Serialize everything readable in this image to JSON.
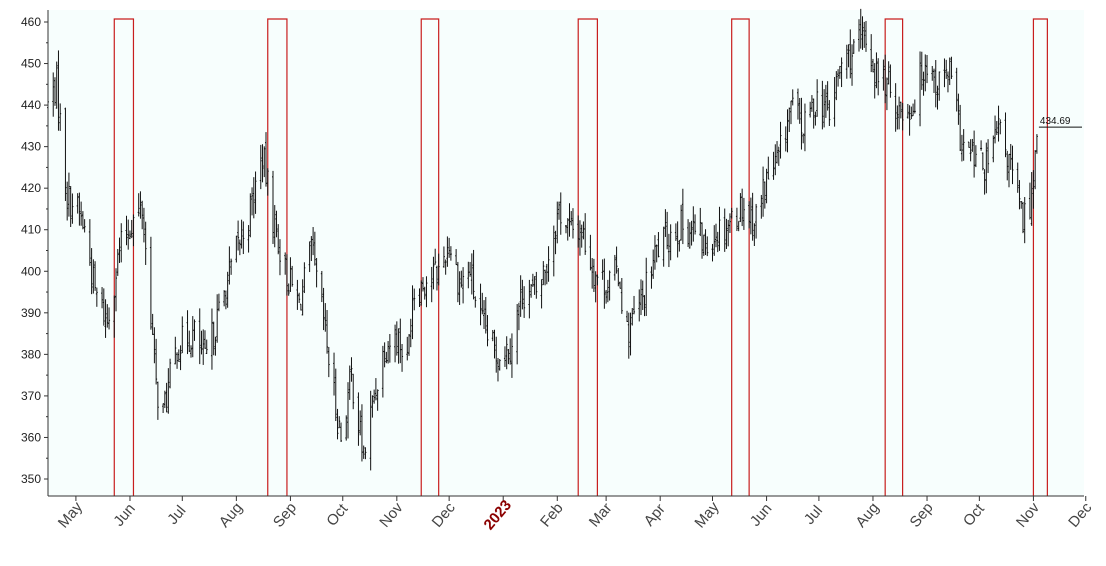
{
  "chart_data": {
    "type": "ohlc",
    "title": "",
    "xlabel": "",
    "ylabel": "",
    "ylim": [
      345,
      461
    ],
    "y_ticks": [
      350,
      360,
      370,
      380,
      390,
      400,
      410,
      420,
      430,
      440,
      450,
      460
    ],
    "x_range": [
      "2022-04-15",
      "2023-11-30"
    ],
    "x_ticks": [
      {
        "label": "May",
        "date": "2022-05-01",
        "year": false
      },
      {
        "label": "Jun",
        "date": "2022-06-01",
        "year": false
      },
      {
        "label": "Jul",
        "date": "2022-07-01",
        "year": false
      },
      {
        "label": "Aug",
        "date": "2022-08-01",
        "year": false
      },
      {
        "label": "Sep",
        "date": "2022-09-01",
        "year": false
      },
      {
        "label": "Oct",
        "date": "2022-10-01",
        "year": false
      },
      {
        "label": "Nov",
        "date": "2022-11-01",
        "year": false
      },
      {
        "label": "Dec",
        "date": "2022-12-01",
        "year": false
      },
      {
        "label": "2023",
        "date": "2023-01-01",
        "year": true
      },
      {
        "label": "Feb",
        "date": "2023-02-01",
        "year": false
      },
      {
        "label": "Mar",
        "date": "2023-03-01",
        "year": false
      },
      {
        "label": "Apr",
        "date": "2023-04-01",
        "year": false
      },
      {
        "label": "May",
        "date": "2023-05-01",
        "year": false
      },
      {
        "label": "Jun",
        "date": "2023-06-01",
        "year": false
      },
      {
        "label": "Jul",
        "date": "2023-07-01",
        "year": false
      },
      {
        "label": "Aug",
        "date": "2023-08-01",
        "year": false
      },
      {
        "label": "Sep",
        "date": "2023-09-01",
        "year": false
      },
      {
        "label": "Oct",
        "date": "2023-10-01",
        "year": false
      },
      {
        "label": "Nov",
        "date": "2023-11-01",
        "year": false
      },
      {
        "label": "Dec",
        "date": "2023-12-01",
        "year": false
      }
    ],
    "price_path": [
      [
        "2022-04-15",
        440
      ],
      [
        "2022-04-20",
        445
      ],
      [
        "2022-04-26",
        418
      ],
      [
        "2022-05-02",
        415
      ],
      [
        "2022-05-06",
        410
      ],
      [
        "2022-05-12",
        395
      ],
      [
        "2022-05-19",
        388
      ],
      [
        "2022-05-26",
        405
      ],
      [
        "2022-06-02",
        412
      ],
      [
        "2022-06-08",
        415
      ],
      [
        "2022-06-13",
        390
      ],
      [
        "2022-06-16",
        372
      ],
      [
        "2022-06-20",
        366
      ],
      [
        "2022-06-28",
        382
      ],
      [
        "2022-07-08",
        385
      ],
      [
        "2022-07-14",
        378
      ],
      [
        "2022-07-22",
        390
      ],
      [
        "2022-08-01",
        405
      ],
      [
        "2022-08-08",
        413
      ],
      [
        "2022-08-16",
        428
      ],
      [
        "2022-08-22",
        413
      ],
      [
        "2022-08-29",
        400
      ],
      [
        "2022-09-06",
        392
      ],
      [
        "2022-09-13",
        405
      ],
      [
        "2022-09-20",
        388
      ],
      [
        "2022-09-26",
        370
      ],
      [
        "2022-09-30",
        360
      ],
      [
        "2022-10-06",
        375
      ],
      [
        "2022-10-13",
        355
      ],
      [
        "2022-10-18",
        368
      ],
      [
        "2022-10-25",
        382
      ],
      [
        "2022-11-01",
        385
      ],
      [
        "2022-11-07",
        378
      ],
      [
        "2022-11-10",
        395
      ],
      [
        "2022-11-18",
        398
      ],
      [
        "2022-11-25",
        400
      ],
      [
        "2022-12-01",
        407
      ],
      [
        "2022-12-07",
        397
      ],
      [
        "2022-12-13",
        400
      ],
      [
        "2022-12-19",
        388
      ],
      [
        "2022-12-28",
        380
      ],
      [
        "2023-01-05",
        382
      ],
      [
        "2023-01-12",
        395
      ],
      [
        "2023-01-20",
        395
      ],
      [
        "2023-01-26",
        402
      ],
      [
        "2023-02-02",
        415
      ],
      [
        "2023-02-08",
        410
      ],
      [
        "2023-02-15",
        410
      ],
      [
        "2023-02-22",
        400
      ],
      [
        "2023-03-01",
        397
      ],
      [
        "2023-03-08",
        400
      ],
      [
        "2023-03-13",
        385
      ],
      [
        "2023-03-22",
        393
      ],
      [
        "2023-03-30",
        405
      ],
      [
        "2023-04-06",
        409
      ],
      [
        "2023-04-13",
        411
      ],
      [
        "2023-04-20",
        410
      ],
      [
        "2023-04-27",
        406
      ],
      [
        "2023-05-04",
        410
      ],
      [
        "2023-05-11",
        412
      ],
      [
        "2023-05-18",
        416
      ],
      [
        "2023-05-25",
        412
      ],
      [
        "2023-06-01",
        422
      ],
      [
        "2023-06-08",
        427
      ],
      [
        "2023-06-15",
        440
      ],
      [
        "2023-06-22",
        434
      ],
      [
        "2023-06-30",
        442
      ],
      [
        "2023-07-07",
        438
      ],
      [
        "2023-07-14",
        450
      ],
      [
        "2023-07-21",
        453
      ],
      [
        "2023-07-28",
        456
      ],
      [
        "2023-08-02",
        448
      ],
      [
        "2023-08-09",
        445
      ],
      [
        "2023-08-17",
        438
      ],
      [
        "2023-08-24",
        440
      ],
      [
        "2023-08-31",
        451
      ],
      [
        "2023-09-07",
        445
      ],
      [
        "2023-09-14",
        448
      ],
      [
        "2023-09-21",
        430
      ],
      [
        "2023-09-28",
        427
      ],
      [
        "2023-10-05",
        425
      ],
      [
        "2023-10-12",
        434
      ],
      [
        "2023-10-19",
        425
      ],
      [
        "2023-10-26",
        412
      ],
      [
        "2023-10-31",
        418
      ],
      [
        "2023-11-03",
        434.69
      ]
    ],
    "highlight_windows": [
      {
        "start": "2022-05-23",
        "end": "2022-06-03"
      },
      {
        "start": "2022-08-19",
        "end": "2022-08-30"
      },
      {
        "start": "2022-11-15",
        "end": "2022-11-25"
      },
      {
        "start": "2023-02-13",
        "end": "2023-02-24"
      },
      {
        "start": "2023-05-12",
        "end": "2023-05-22"
      },
      {
        "start": "2023-08-08",
        "end": "2023-08-18"
      },
      {
        "start": "2023-11-01",
        "end": "2023-11-09"
      }
    ],
    "last_value": 434.69,
    "last_value_label": "434.69",
    "grid": false,
    "colors": {
      "plot_background": "#f7fefd",
      "bars": "#111111",
      "highlight": "#c81e1e",
      "axis": "#333333",
      "year_label": "#8b0000"
    }
  }
}
